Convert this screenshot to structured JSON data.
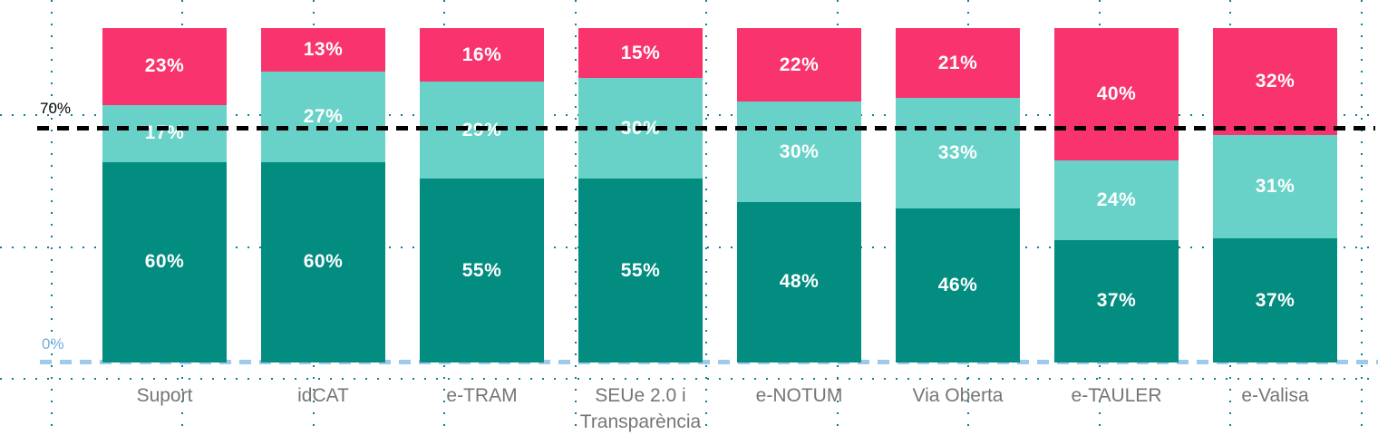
{
  "chart_data": {
    "type": "bar",
    "subtype": "stacked-100-percent",
    "title": "",
    "categories": [
      "Suport",
      "idCAT",
      "e-TRAM",
      "SEUe 2.0 i Transparència",
      "e-NOTUM",
      "Via Oberta",
      "e-TAULER",
      "e-Valisa"
    ],
    "series": [
      {
        "name": "bottom",
        "color": "#038C80",
        "values": [
          60,
          60,
          55,
          55,
          48,
          46,
          37,
          37
        ]
      },
      {
        "name": "middle",
        "color": "#69D2C8",
        "values": [
          17,
          27,
          29,
          30,
          30,
          33,
          24,
          31
        ]
      },
      {
        "name": "top",
        "color": "#F8336E",
        "values": [
          23,
          13,
          16,
          15,
          22,
          21,
          40,
          32
        ]
      }
    ],
    "value_suffix": "%",
    "ylim": [
      0,
      100
    ],
    "grid": "dotted",
    "grid_dot_color": "#0F7E93",
    "value_label_color": "#FFFFFF",
    "category_label_color": "#757575",
    "legend": "none",
    "reference_lines": [
      {
        "label": "70%",
        "value": 70,
        "color": "#000000",
        "style": "dashed"
      },
      {
        "label": "0%",
        "value": 0,
        "color": "#9FC9EA",
        "label_color": "#70AFDF",
        "style": "dashed"
      }
    ]
  }
}
